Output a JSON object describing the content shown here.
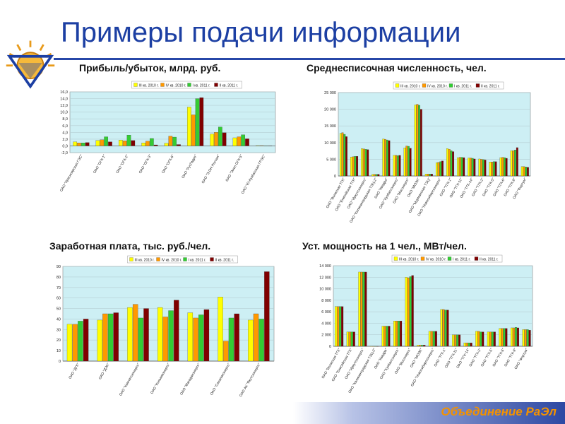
{
  "slide": {
    "title": "Примеры подачи информации",
    "footer": "Объединение РаЭл"
  },
  "colors": {
    "title": "#1c3fa3",
    "rule": "#2747a8",
    "plot_bg": "#cdeff4",
    "footer_text": "#f39200",
    "series": [
      "#ffff00",
      "#ff9900",
      "#33cc33",
      "#800000"
    ]
  },
  "chart_data": [
    {
      "type": "bar",
      "title": "Прибыль/убыток, млрд. руб.",
      "legend": "top",
      "series_names": [
        "III кв. 2010 г.",
        "IV кв. 2010 г.",
        "I кв. 2011 г.",
        "II кв. 2011 г."
      ],
      "categories": [
        "ОАО \"Красноярская ГЭС\"",
        "ОАО \"ОГК-1\"",
        "ОАО \"ОГК-2\"",
        "ОАО \"ОГК-3\"",
        "ОАО \"ОГК-6\"",
        "ОАО \"РусГидро\"",
        "ОАО \"Э.ОН Россия\"",
        "ОАО \"Энел ОГК-5\"",
        "ОАО \"Ю-Кузбасская ГРЭС\""
      ],
      "series": [
        {
          "name": "III кв. 2010 г.",
          "values": [
            1.2,
            1.6,
            1.7,
            0.9,
            0.8,
            11.5,
            3.5,
            2.4,
            0.1
          ]
        },
        {
          "name": "IV кв. 2010 г.",
          "values": [
            0.9,
            1.8,
            1.5,
            1.4,
            2.9,
            9.2,
            4.0,
            2.7,
            0.1
          ]
        },
        {
          "name": "I кв. 2011 г.",
          "values": [
            0.9,
            2.7,
            3.2,
            2.2,
            2.6,
            14.0,
            5.6,
            3.3,
            0.05
          ]
        },
        {
          "name": "II кв. 2011 г.",
          "values": [
            1.0,
            1.2,
            1.6,
            0.3,
            0.4,
            14.3,
            3.9,
            2.1,
            0.05
          ]
        }
      ],
      "ylim": [
        -2.0,
        16.0
      ],
      "yticks": [
        "-2,0",
        "0,0",
        "2,0",
        "4,0",
        "6,0",
        "8,0",
        "10,0",
        "12,0",
        "14,0",
        "16,0"
      ],
      "grid": true
    },
    {
      "type": "bar",
      "title": "Среднесписочная численность, чел.",
      "legend": "top",
      "series_names": [
        "III кв. 2010 г.",
        "IV кв. 2010 г.",
        "I кв. 2011 г.",
        "II кв. 2011 г."
      ],
      "categories": [
        "ОАО \"Волжская ТГК\"",
        "ОАО \"Енисейская ТГК\"",
        "ОАО \"Иркутскэнерго\"",
        "ОАО \"Калининградская ТЭЦ-2\"",
        "ОАО \"Квадра\"",
        "ОАО \"Кузбассэнерго\"",
        "ОАО \"Мосэнерго\"",
        "ОАО \"МОЭК\"",
        "ОАО \"Мурманская ТЭЦ\"",
        "ОАО \"Новосибирскэнерго\"",
        "ОАО \"ТГК-1\"",
        "ОАО \"ТГК-11\"",
        "ОАО \"ТГК-14\"",
        "ОАО \"ТГК-2\"",
        "ОАО \"ТГК-5\"",
        "ОАО \"ТГК-6\"",
        "ОАО \"ТГК-9\"",
        "ОАО \"Фортум\""
      ],
      "series": [
        {
          "name": "III кв. 2010 г.",
          "values": [
            12800,
            5700,
            8200,
            500,
            11100,
            6200,
            8400,
            21300,
            600,
            4000,
            8200,
            5500,
            5400,
            5100,
            4200,
            5500,
            7600,
            2800
          ]
        },
        {
          "name": "IV кв. 2010 г.",
          "values": [
            13000,
            5800,
            8100,
            500,
            11000,
            6200,
            9000,
            21500,
            600,
            4100,
            8000,
            5600,
            5400,
            5000,
            4200,
            5600,
            7600,
            2800
          ]
        },
        {
          "name": "I кв. 2011 г.",
          "values": [
            12500,
            5900,
            8000,
            500,
            10800,
            6100,
            8900,
            21200,
            600,
            4300,
            7600,
            5600,
            5300,
            4900,
            4300,
            5500,
            7800,
            2700
          ]
        },
        {
          "name": "II кв. 2011 г.",
          "values": [
            11800,
            5900,
            7900,
            500,
            10600,
            6200,
            8300,
            20000,
            600,
            4500,
            7300,
            5500,
            5100,
            4800,
            4300,
            5300,
            8500,
            2600
          ]
        }
      ],
      "ylim": [
        0,
        25000
      ],
      "yticks": [
        "0",
        "5 000",
        "10 000",
        "15 000",
        "20 000",
        "25 000"
      ],
      "grid": true
    },
    {
      "type": "bar",
      "title": "Заработная плата, тыс. руб./чел.",
      "legend": "top",
      "series_names": [
        "III кв. 2010 г.",
        "IV кв. 2010 г.",
        "I кв. 2011 г.",
        "II кв. 2011 г."
      ],
      "categories": [
        "ОАО \"ДГК\"",
        "ОАО \"ДЭК\"",
        "ОАО \"Камчатскэнерго\"",
        "ОАО \"Колымаэнерго\"",
        "ОАО \"Магаданэнерго\"",
        "ОАО \"Сахалинэнерго\"",
        "ОАО АК \"Якутскэнерго\""
      ],
      "series": [
        {
          "name": "III кв. 2010 г.",
          "values": [
            35,
            39,
            51,
            51,
            46,
            61,
            39
          ]
        },
        {
          "name": "IV кв. 2010 г.",
          "values": [
            35,
            45,
            54,
            42,
            41,
            19,
            45
          ]
        },
        {
          "name": "I кв. 2011 г.",
          "values": [
            38,
            45,
            41,
            48,
            44,
            41,
            40
          ]
        },
        {
          "name": "II кв. 2011 г.",
          "values": [
            40,
            46,
            50,
            58,
            49,
            45,
            85
          ]
        }
      ],
      "ylim": [
        0,
        90
      ],
      "yticks": [
        "0",
        "10",
        "20",
        "30",
        "40",
        "50",
        "60",
        "70",
        "80",
        "90"
      ],
      "grid": true
    },
    {
      "type": "bar",
      "title": "Уст. мощность на 1 чел., МВт/чел.",
      "legend": "top",
      "series_names": [
        "III кв. 2010 г.",
        "IV кв. 2010 г.",
        "I кв. 2011 г.",
        "II кв. 2011 г."
      ],
      "categories": [
        "ОАО \"Волжская ТГК\"",
        "ОАО \"Енисейская ТГК\"",
        "ОАО \"Иркутскэнерго\"",
        "ОАО \"Калининградская ТЭЦ-2\"",
        "ОАО \"Квадра\"",
        "ОАО \"Кузбассэнерго\"",
        "ОАО \"Мосэнерго\"",
        "ОАО \"МОЭК\"",
        "ОАО \"Новосибирскэнерго\"",
        "ОАО \"ТГК-1\"",
        "ОАО \"ТГК-11\"",
        "ОАО \"ТГК-14\"",
        "ОАО \"ТГК-2\"",
        "ОАО \"ТГК-5\"",
        "ОАО \"ТГК-6\"",
        "ОАО \"ТГК-9\"",
        "ОАО \"Фортум\""
      ],
      "series": [
        {
          "name": "III кв. 2010 г.",
          "values": [
            6900,
            2500,
            12900,
            0,
            3500,
            4400,
            12000,
            200,
            2600,
            6400,
            2000,
            600,
            2600,
            2500,
            3100,
            3200,
            2900
          ]
        },
        {
          "name": "IV кв. 2010 г.",
          "values": [
            6900,
            2500,
            12900,
            0,
            3500,
            4400,
            11900,
            200,
            2600,
            6400,
            2000,
            600,
            2600,
            2500,
            3100,
            3200,
            2900
          ]
        },
        {
          "name": "I кв. 2011 г.",
          "values": [
            6900,
            2500,
            12900,
            0,
            3500,
            4400,
            12100,
            200,
            2600,
            6300,
            2000,
            600,
            2500,
            2500,
            3100,
            3300,
            2900
          ]
        },
        {
          "name": "II кв. 2011 г.",
          "values": [
            6900,
            2500,
            12900,
            0,
            3500,
            4400,
            12300,
            200,
            2600,
            6300,
            2000,
            600,
            2500,
            2500,
            3100,
            3200,
            2800
          ]
        }
      ],
      "ylim": [
        0,
        14000
      ],
      "yticks": [
        "0",
        "2 000",
        "4 000",
        "6 000",
        "8 000",
        "10 000",
        "12 000",
        "14 000"
      ],
      "grid": true
    }
  ]
}
